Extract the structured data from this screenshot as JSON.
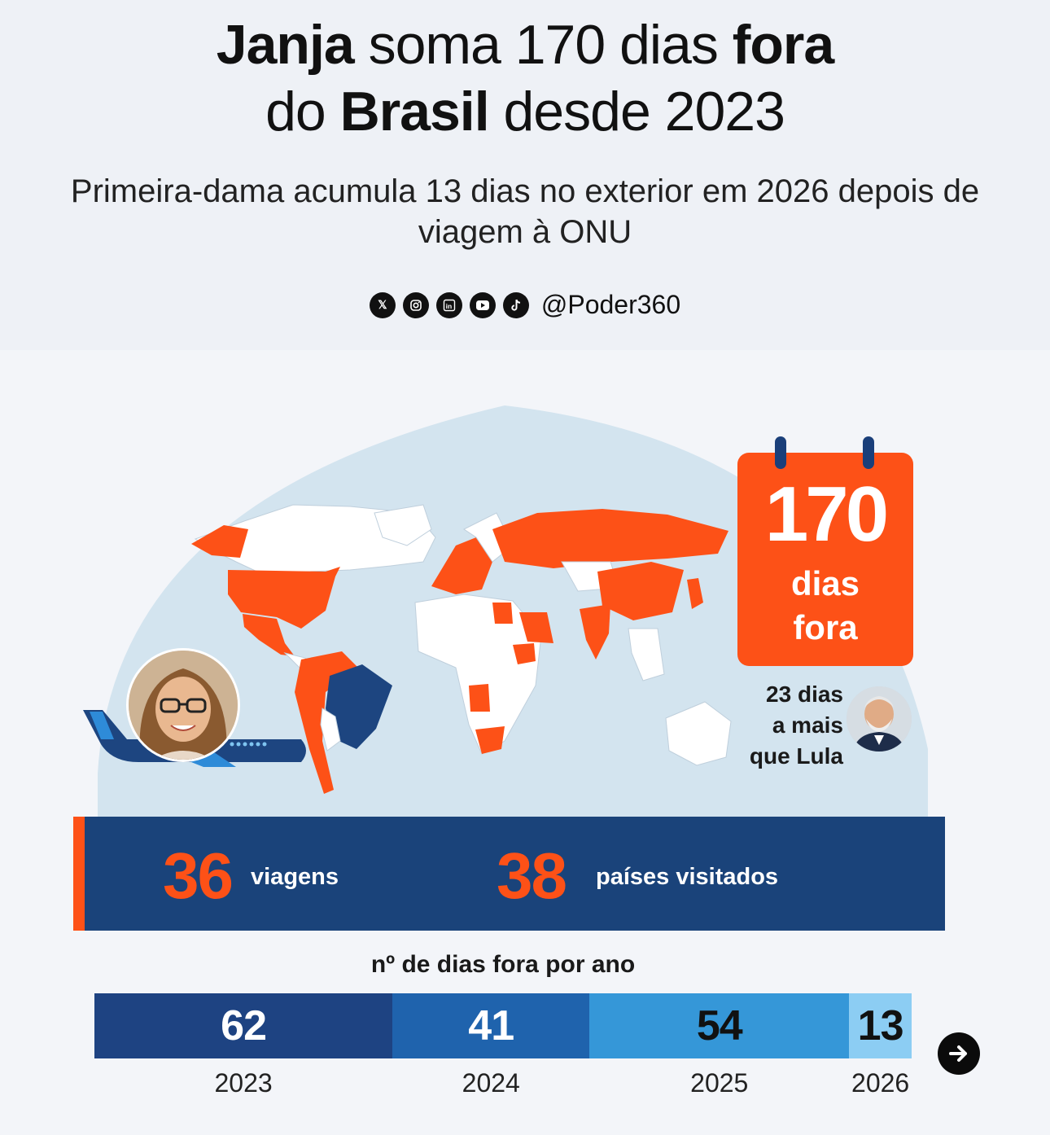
{
  "header": {
    "title_line1_bold_a": "Janja",
    "title_line1_mid": " soma 170 dias ",
    "title_line1_bold_b": "fora",
    "title_line2_pre": "do ",
    "title_line2_bold": "Brasil",
    "title_line2_post": " desde 2023",
    "subtitle": "Primeira-dama acumula 13 dias no exterior em 2026 depois de viagem à ONU"
  },
  "social": {
    "icons": [
      "x-icon",
      "instagram-icon",
      "linkedin-icon",
      "youtube-icon",
      "tiktok-icon"
    ],
    "handle": "@Poder360"
  },
  "calendar": {
    "number": "170",
    "label_line1": "dias",
    "label_line2": "fora"
  },
  "lula_note": {
    "line1": "23 dias",
    "line2": "a mais",
    "line3": "que Lula"
  },
  "stats": {
    "trips_value": "36",
    "trips_label": "viagens",
    "countries_value": "38",
    "countries_label": "países visitados"
  },
  "colors": {
    "accent_orange": "#fd5117",
    "navy": "#1a437a",
    "map_ocean": "#d3e4ef",
    "brazil": "#1d4580"
  },
  "chart_data": {
    "type": "bar",
    "orientation": "horizontal-stacked",
    "title": "nº de dias fora por ano",
    "categories": [
      "2023",
      "2024",
      "2025",
      "2026"
    ],
    "values": [
      62,
      41,
      54,
      13
    ],
    "colors": [
      "#1e4382",
      "#1f63ad",
      "#3597d8",
      "#8ccdf3"
    ],
    "total": 170
  }
}
